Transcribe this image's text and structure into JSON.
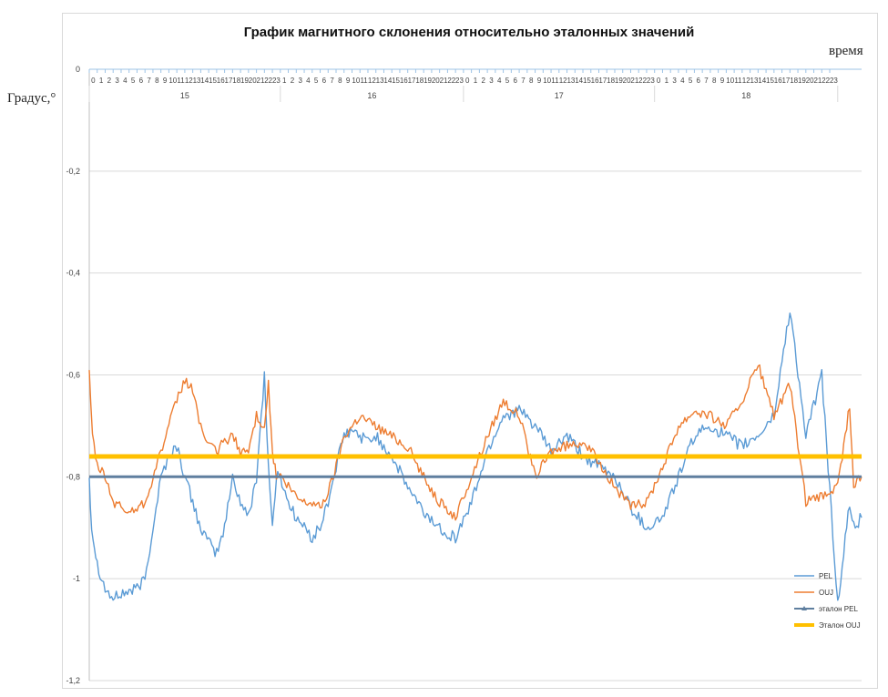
{
  "chart_data": {
    "type": "line",
    "title": "График магнитного склонения относительно эталонных значений",
    "xlabel": "время",
    "ylabel": "Градус,°",
    "ylim": [
      -1.2,
      0
    ],
    "yticks": [
      0,
      -0.2,
      -0.4,
      -0.6,
      -0.8,
      -1,
      -1.2
    ],
    "ytick_labels": [
      "0",
      "-0,2",
      "-0,4",
      "-0,6",
      "-0,8",
      "-1",
      "-1,2"
    ],
    "grid": true,
    "legend_position": "bottom-right",
    "x_axis_position": "top",
    "days": [
      {
        "label": "15",
        "hours": [
          "0",
          "1",
          "2",
          "3",
          "4",
          "5",
          "6",
          "7",
          "8",
          "9",
          "10",
          "11",
          "12",
          "13",
          "14",
          "15",
          "16",
          "17",
          "18",
          "19",
          "20",
          "21",
          "22",
          "23"
        ]
      },
      {
        "label": "16",
        "hours": [
          "1",
          "2",
          "3",
          "4",
          "5",
          "6",
          "7",
          "8",
          "9",
          "10",
          "11",
          "12",
          "13",
          "14",
          "15",
          "16",
          "17",
          "18",
          "19",
          "20",
          "21",
          "22",
          "23"
        ]
      },
      {
        "label": "17",
        "hours": [
          "0",
          "1",
          "2",
          "3",
          "4",
          "5",
          "6",
          "7",
          "8",
          "9",
          "10",
          "11",
          "12",
          "13",
          "14",
          "15",
          "16",
          "17",
          "18",
          "19",
          "20",
          "21",
          "22",
          "23"
        ]
      },
      {
        "label": "18",
        "hours": [
          "0",
          "1",
          "3",
          "4",
          "5",
          "6",
          "7",
          "8",
          "9",
          "10",
          "11",
          "12",
          "13",
          "14",
          "15",
          "16",
          "17",
          "18",
          "19",
          "20",
          "21",
          "22",
          "23"
        ]
      }
    ],
    "series": [
      {
        "name": "PEL",
        "color": "#5b9bd5",
        "noise": 0.012,
        "x": [
          0,
          0.3,
          1,
          2,
          3,
          4,
          6,
          7,
          8,
          9,
          10,
          11,
          12,
          13,
          14,
          15,
          16,
          17,
          18,
          19,
          20,
          21,
          22,
          22.5,
          23,
          23.5,
          24,
          25,
          26,
          27,
          28,
          29,
          30,
          31,
          32,
          33,
          34,
          35,
          36,
          37,
          38,
          40,
          42,
          44,
          46,
          48,
          50,
          52,
          54,
          56,
          58,
          60,
          62,
          64,
          66,
          68,
          70,
          72,
          74,
          76,
          78,
          80,
          82,
          84,
          86,
          88,
          90,
          92,
          94,
          95.5,
          96,
          97
        ],
        "y": [
          -0.8,
          -0.9,
          -0.97,
          -1.02,
          -1.04,
          -1.03,
          -1.02,
          -1.0,
          -0.9,
          -0.8,
          -0.76,
          -0.74,
          -0.8,
          -0.85,
          -0.9,
          -0.93,
          -0.95,
          -0.9,
          -0.8,
          -0.85,
          -0.88,
          -0.8,
          -0.6,
          -0.78,
          -0.9,
          -0.8,
          -0.8,
          -0.85,
          -0.88,
          -0.9,
          -0.92,
          -0.9,
          -0.85,
          -0.78,
          -0.72,
          -0.71,
          -0.72,
          -0.73,
          -0.72,
          -0.74,
          -0.76,
          -0.82,
          -0.87,
          -0.9,
          -0.92,
          -0.85,
          -0.75,
          -0.68,
          -0.67,
          -0.7,
          -0.75,
          -0.72,
          -0.76,
          -0.78,
          -0.8,
          -0.86,
          -0.9,
          -0.88,
          -0.8,
          -0.72,
          -0.7,
          -0.72,
          -0.74,
          -0.72,
          -0.68,
          -0.47,
          -0.72,
          -0.6,
          -1.05,
          -0.85,
          -0.9,
          -0.88
        ]
      },
      {
        "name": "OUJ",
        "color": "#ed7d31",
        "noise": 0.01,
        "x": [
          0,
          0.4,
          1,
          2,
          3,
          4,
          5,
          6,
          7,
          8,
          9,
          10,
          11,
          12,
          13,
          14,
          15,
          16,
          17,
          18,
          19,
          20,
          21,
          22,
          22.5,
          23,
          23.5,
          24,
          25,
          26,
          27,
          28,
          29,
          30,
          31,
          32,
          33,
          34,
          35,
          36,
          37,
          38,
          40,
          42,
          44,
          46,
          48,
          50,
          52,
          54,
          56,
          58,
          60,
          62,
          64,
          66,
          68,
          70,
          72,
          74,
          76,
          78,
          80,
          82,
          84,
          86,
          88,
          90,
          92,
          94,
          95.5,
          96,
          97
        ],
        "y": [
          -0.6,
          -0.72,
          -0.78,
          -0.8,
          -0.85,
          -0.86,
          -0.87,
          -0.86,
          -0.85,
          -0.8,
          -0.75,
          -0.7,
          -0.65,
          -0.61,
          -0.63,
          -0.7,
          -0.74,
          -0.75,
          -0.73,
          -0.72,
          -0.75,
          -0.75,
          -0.68,
          -0.7,
          -0.62,
          -0.75,
          -0.8,
          -0.8,
          -0.82,
          -0.84,
          -0.85,
          -0.85,
          -0.86,
          -0.83,
          -0.78,
          -0.72,
          -0.7,
          -0.68,
          -0.69,
          -0.7,
          -0.71,
          -0.72,
          -0.74,
          -0.8,
          -0.85,
          -0.88,
          -0.8,
          -0.72,
          -0.65,
          -0.68,
          -0.8,
          -0.75,
          -0.74,
          -0.73,
          -0.77,
          -0.82,
          -0.86,
          -0.85,
          -0.78,
          -0.7,
          -0.67,
          -0.68,
          -0.7,
          -0.65,
          -0.58,
          -0.68,
          -0.62,
          -0.85,
          -0.84,
          -0.82,
          -0.66,
          -0.82,
          -0.8
        ]
      },
      {
        "name": "эталон PEL",
        "color": "#5f7f9f",
        "x": [
          0,
          97
        ],
        "y": [
          -0.8,
          -0.8
        ]
      },
      {
        "name": "Эталон OUJ",
        "color": "#ffc000",
        "x": [
          0,
          97
        ],
        "y": [
          -0.76,
          -0.76
        ]
      }
    ]
  }
}
